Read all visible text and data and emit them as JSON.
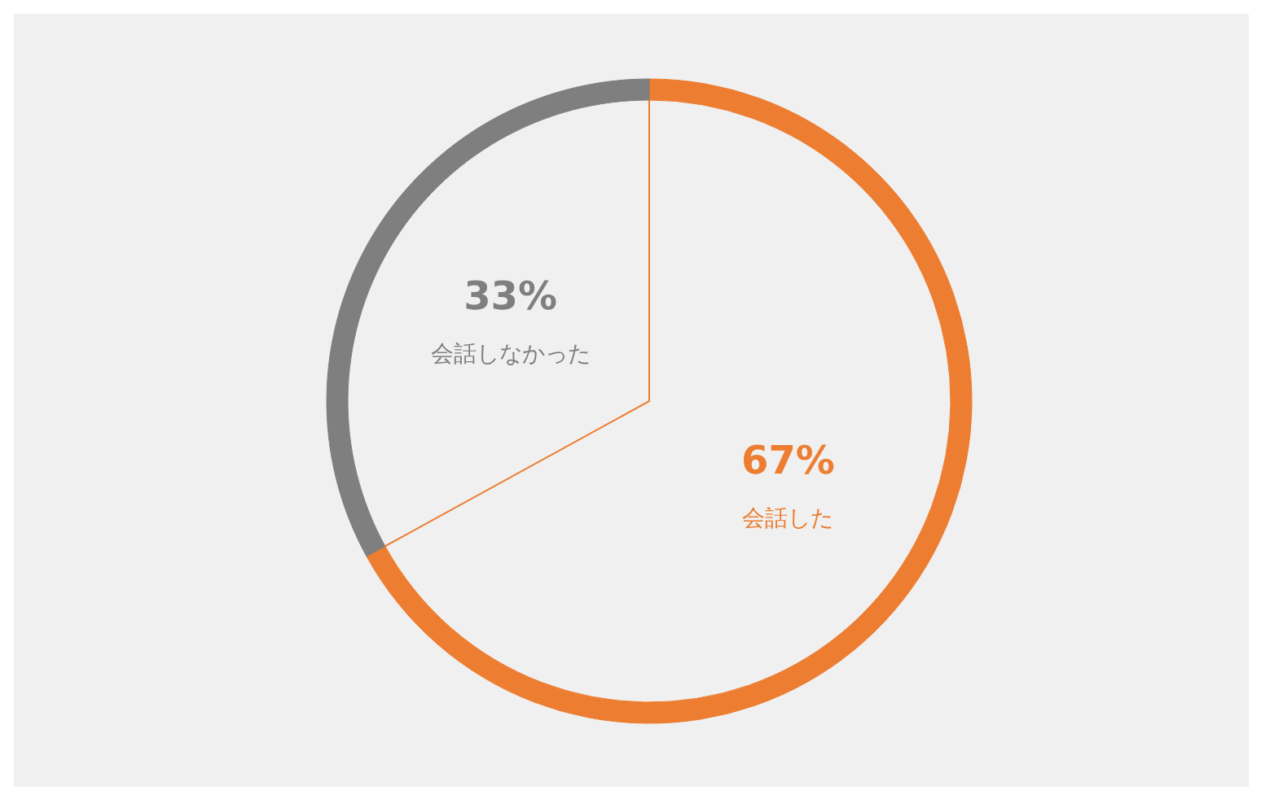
{
  "chart_data": {
    "type": "donut",
    "categories": [
      "会話した",
      "会話しなかった"
    ],
    "values": [
      67,
      33
    ],
    "colors": [
      "#ed7d31",
      "#7f7f7f"
    ],
    "value_labels": [
      "67%",
      "33%"
    ],
    "legend": false
  }
}
